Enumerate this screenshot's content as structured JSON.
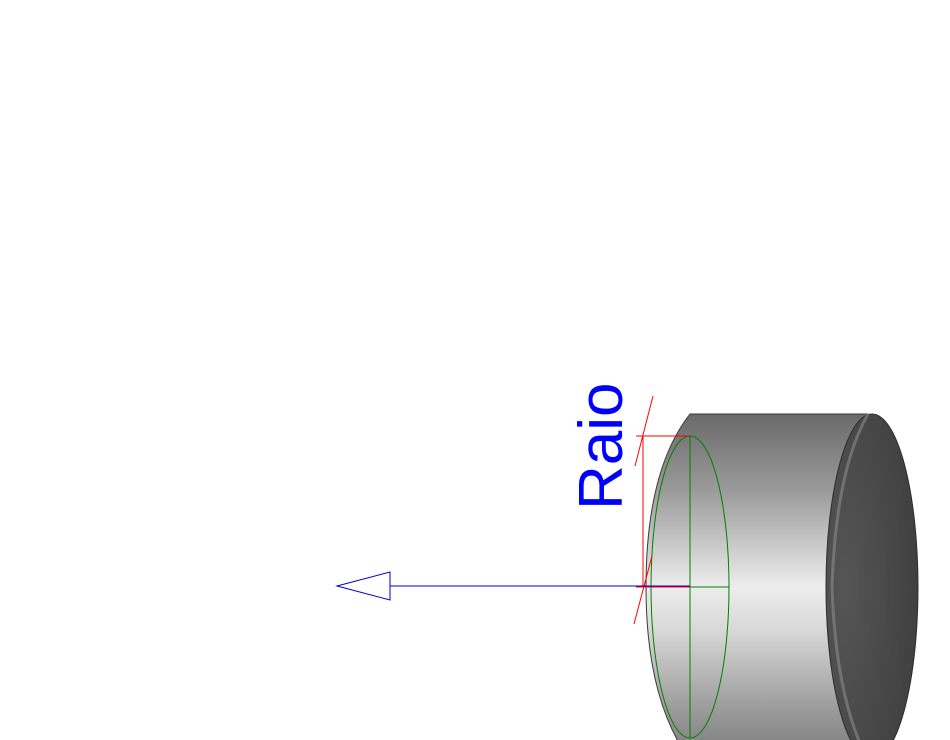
{
  "dimension": {
    "label": "Raio"
  },
  "colors": {
    "background": "#ffffff",
    "dimension_text": "#0000ff",
    "direction_arrow": "#0000cc",
    "dimension_lines": "#ff0000",
    "sketch_circle": "#008000",
    "cylinder_body_highlight": "#f0f0f0",
    "cylinder_body_shadow": "#606060",
    "cylinder_end_face": "#404040"
  }
}
